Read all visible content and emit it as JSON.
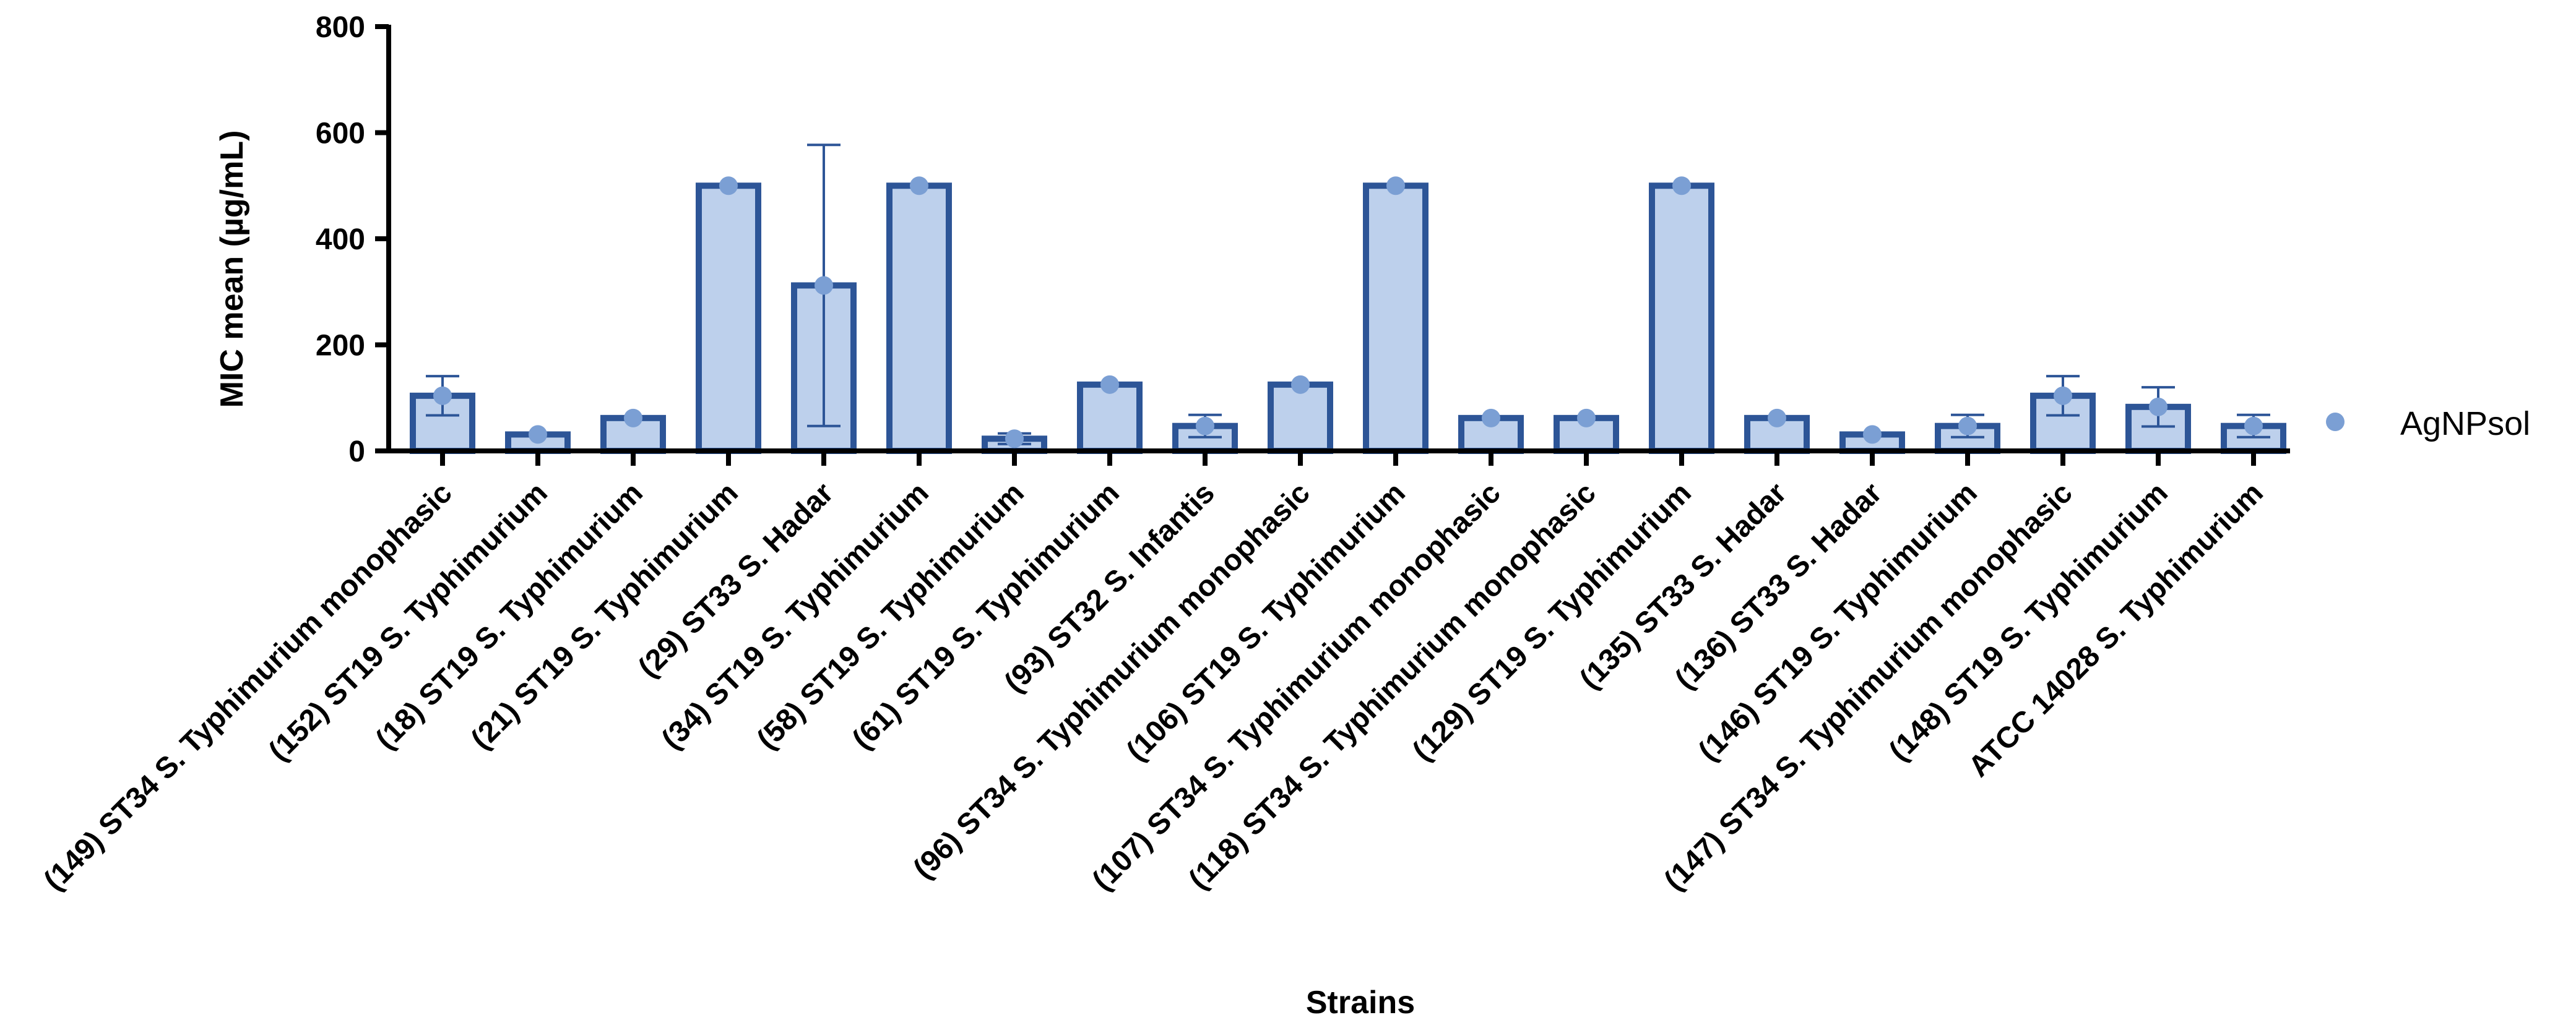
{
  "chart_data": {
    "type": "bar",
    "xlabel": "Strains",
    "ylabel": "MIC mean (µg/mL)",
    "ylim": [
      0,
      800
    ],
    "yticks": [
      0,
      200,
      400,
      600,
      800
    ],
    "grid": false,
    "legend_position": "right",
    "series": [
      {
        "name": "AgNPsol",
        "values": [
          104,
          31,
          62,
          500,
          312,
          500,
          23,
          125,
          47,
          125,
          500,
          62,
          62,
          500,
          62,
          31,
          47,
          104,
          83,
          47
        ],
        "error": [
          37,
          0,
          0,
          0,
          265,
          0,
          10,
          0,
          21,
          0,
          0,
          0,
          0,
          0,
          0,
          0,
          21,
          37,
          37,
          21
        ]
      }
    ],
    "categories": [
      "(149) ST34 S. Typhimurium monophasic",
      "(152) ST19 S. Typhimurium",
      "(18) ST19 S. Typhimurium",
      "(21) ST19 S. Typhimurium",
      "(29) ST33 S. Hadar",
      "(34) ST19 S. Typhimurium",
      "(58) ST19 S. Typhimurium",
      "(61) ST19 S. Typhimurium",
      "(93) ST32 S. Infantis",
      "(96) ST34 S. Typhimurium monophasic",
      "(106) ST19 S. Typhimurium",
      "(107) ST34 S. Typhimurium monophasic",
      "(118) ST34 S. Typhimurium monophasic",
      "(129) ST19 S. Typhimurium",
      "(135) ST33 S. Hadar",
      "(136) ST33 S. Hadar",
      "(146) ST19 S. Typhimurium",
      "(147) ST34 S. Typhimurium monophasic",
      "(148) ST19 S. Typhimurium",
      "ATCC 14028 S. Typhimurium"
    ],
    "colors": {
      "bar_fill": "#bdd0ec",
      "bar_stroke": "#2d5597",
      "point": "#7b9fd4",
      "axis": "#000000"
    }
  }
}
